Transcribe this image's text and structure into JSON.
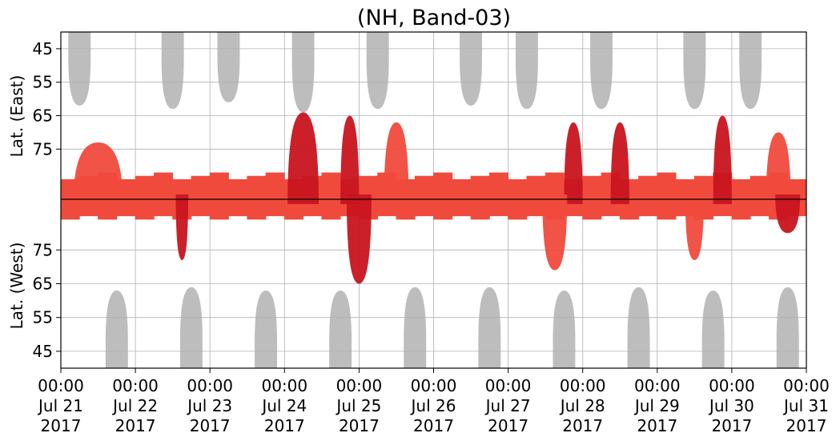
{
  "chart_data": {
    "type": "heatmap",
    "title": "(NH, Band-03)",
    "x_axis": {
      "start": "2017-07-21 00:00",
      "end": "2017-07-31 00:00",
      "grid": true,
      "ticks": [
        {
          "time": "00:00",
          "date": "Jul 21",
          "year": "2017"
        },
        {
          "time": "00:00",
          "date": "Jul 22",
          "year": "2017"
        },
        {
          "time": "00:00",
          "date": "Jul 23",
          "year": "2017"
        },
        {
          "time": "00:00",
          "date": "Jul 24",
          "year": "2017"
        },
        {
          "time": "00:00",
          "date": "Jul 25",
          "year": "2017"
        },
        {
          "time": "00:00",
          "date": "Jul 26",
          "year": "2017"
        },
        {
          "time": "00:00",
          "date": "Jul 27",
          "year": "2017"
        },
        {
          "time": "00:00",
          "date": "Jul 28",
          "year": "2017"
        },
        {
          "time": "00:00",
          "date": "Jul 29",
          "year": "2017"
        },
        {
          "time": "00:00",
          "date": "Jul 30",
          "year": "2017"
        },
        {
          "time": "00:00",
          "date": "Jul 31",
          "year": "2017"
        }
      ]
    },
    "y_axis_top": {
      "label": "Lat. (East)",
      "range": [
        90,
        40
      ],
      "ticks": [
        {
          "value": 45,
          "label": "45"
        },
        {
          "value": 55,
          "label": "55"
        },
        {
          "value": 65,
          "label": "65"
        },
        {
          "value": 75,
          "label": "75"
        }
      ],
      "grid": true
    },
    "y_axis_bottom": {
      "label": "Lat. (West)",
      "range": [
        90,
        40
      ],
      "ticks": [
        {
          "value": 75,
          "label": "75"
        },
        {
          "value": 65,
          "label": "65"
        },
        {
          "value": 55,
          "label": "55"
        },
        {
          "value": 45,
          "label": "45"
        }
      ],
      "grid": true
    },
    "colors": {
      "strong": "#c8141e",
      "weak": "#f04a3c",
      "no_data": "#bdbdbd",
      "divider": "#000000"
    },
    "no_data_regions": {
      "east": [
        {
          "center": "2017-07-21 06:00",
          "half_width_hours": 3.6,
          "lowest_lat": 62
        },
        {
          "center": "2017-07-22 12:00",
          "half_width_hours": 3.6,
          "lowest_lat": 63
        },
        {
          "center": "2017-07-23 06:00",
          "half_width_hours": 3.6,
          "lowest_lat": 61
        },
        {
          "center": "2017-07-24 06:00",
          "half_width_hours": 3.6,
          "lowest_lat": 64
        },
        {
          "center": "2017-07-25 06:00",
          "half_width_hours": 3.6,
          "lowest_lat": 63
        },
        {
          "center": "2017-07-26 12:00",
          "half_width_hours": 3.6,
          "lowest_lat": 62
        },
        {
          "center": "2017-07-27 06:00",
          "half_width_hours": 3.6,
          "lowest_lat": 63
        },
        {
          "center": "2017-07-28 06:00",
          "half_width_hours": 3.6,
          "lowest_lat": 63
        },
        {
          "center": "2017-07-29 12:00",
          "half_width_hours": 3.6,
          "lowest_lat": 63
        },
        {
          "center": "2017-07-30 06:00",
          "half_width_hours": 3.6,
          "lowest_lat": 63
        }
      ],
      "west": [
        {
          "center": "2017-07-21 18:00",
          "half_width_hours": 3.6,
          "lowest_lat": 63
        },
        {
          "center": "2017-07-22 18:00",
          "half_width_hours": 3.6,
          "lowest_lat": 64
        },
        {
          "center": "2017-07-23 18:00",
          "half_width_hours": 3.6,
          "lowest_lat": 63
        },
        {
          "center": "2017-07-24 18:00",
          "half_width_hours": 3.6,
          "lowest_lat": 63
        },
        {
          "center": "2017-07-25 18:00",
          "half_width_hours": 3.6,
          "lowest_lat": 64
        },
        {
          "center": "2017-07-26 18:00",
          "half_width_hours": 3.6,
          "lowest_lat": 64
        },
        {
          "center": "2017-07-27 18:00",
          "half_width_hours": 3.6,
          "lowest_lat": 63
        },
        {
          "center": "2017-07-28 18:00",
          "half_width_hours": 3.6,
          "lowest_lat": 64
        },
        {
          "center": "2017-07-29 18:00",
          "half_width_hours": 3.6,
          "lowest_lat": 63
        },
        {
          "center": "2017-07-30 18:00",
          "half_width_hours": 3.6,
          "lowest_lat": 64
        }
      ]
    },
    "echo_regions": [
      {
        "hemisphere": "east",
        "center": "2017-07-24 06:00",
        "half_width_hours": 5,
        "lat_low": 64,
        "lat_high": 90,
        "intensity": "strong"
      },
      {
        "hemisphere": "east",
        "center": "2017-07-24 21:00",
        "half_width_hours": 3,
        "lat_low": 65,
        "lat_high": 90,
        "intensity": "strong"
      },
      {
        "hemisphere": "east",
        "center": "2017-07-25 12:00",
        "half_width_hours": 4,
        "lat_low": 67,
        "lat_high": 90,
        "intensity": "weak"
      },
      {
        "hemisphere": "east",
        "center": "2017-07-27 21:00",
        "half_width_hours": 3,
        "lat_low": 67,
        "lat_high": 90,
        "intensity": "strong"
      },
      {
        "hemisphere": "east",
        "center": "2017-07-28 12:00",
        "half_width_hours": 3,
        "lat_low": 67,
        "lat_high": 90,
        "intensity": "strong"
      },
      {
        "hemisphere": "east",
        "center": "2017-07-29 21:00",
        "half_width_hours": 3,
        "lat_low": 65,
        "lat_high": 90,
        "intensity": "strong"
      },
      {
        "hemisphere": "east",
        "center": "2017-07-30 15:00",
        "half_width_hours": 4,
        "lat_low": 70,
        "lat_high": 90,
        "intensity": "weak"
      },
      {
        "hemisphere": "east",
        "center": "2017-07-21 12:00",
        "half_width_hours": 8,
        "lat_low": 73,
        "lat_high": 90,
        "intensity": "weak"
      },
      {
        "hemisphere": "west",
        "center": "2017-07-25 00:00",
        "half_width_hours": 4,
        "lat_low": 65,
        "lat_high": 90,
        "intensity": "strong"
      },
      {
        "hemisphere": "west",
        "center": "2017-07-22 15:00",
        "half_width_hours": 2,
        "lat_low": 72,
        "lat_high": 90,
        "intensity": "strong"
      },
      {
        "hemisphere": "west",
        "center": "2017-07-27 15:00",
        "half_width_hours": 4,
        "lat_low": 69,
        "lat_high": 90,
        "intensity": "weak"
      },
      {
        "hemisphere": "west",
        "center": "2017-07-29 12:00",
        "half_width_hours": 3,
        "lat_low": 72,
        "lat_high": 90,
        "intensity": "weak"
      },
      {
        "hemisphere": "west",
        "center": "2017-07-30 18:00",
        "half_width_hours": 4,
        "lat_low": 80,
        "lat_high": 90,
        "intensity": "strong"
      }
    ]
  }
}
